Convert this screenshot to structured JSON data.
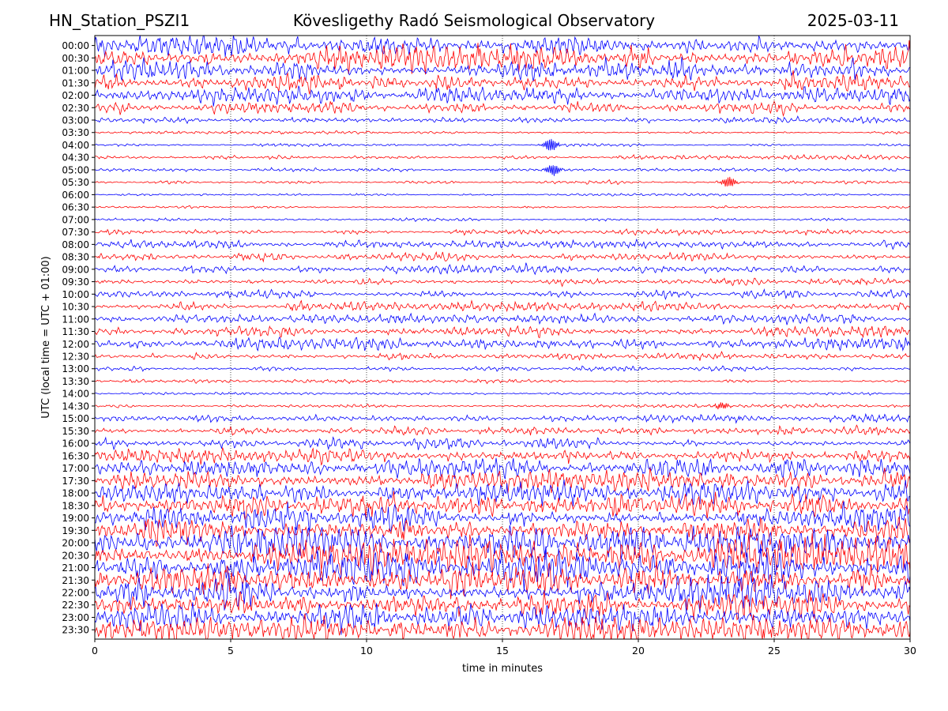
{
  "header": {
    "station": "HN_Station_PSZI1",
    "observatory": "Kövesligethy Radó Seismological Observatory",
    "date": "2025-03-11"
  },
  "chart_data": {
    "type": "line",
    "xlabel": "time in minutes",
    "ylabel": "UTC (local time = UTC + 01:00)",
    "xlim": [
      0,
      30
    ],
    "xticks": [
      0,
      5,
      10,
      15,
      20,
      25,
      30
    ],
    "vertical_gridlines": [
      5,
      10,
      15,
      20,
      25
    ],
    "row_labels": [
      "00:00",
      "00:30",
      "01:00",
      "01:30",
      "02:00",
      "02:30",
      "03:00",
      "03:30",
      "04:00",
      "04:30",
      "05:00",
      "05:30",
      "06:00",
      "06:30",
      "07:00",
      "07:30",
      "08:00",
      "08:30",
      "09:00",
      "09:30",
      "10:00",
      "10:30",
      "11:00",
      "11:30",
      "12:00",
      "12:30",
      "13:00",
      "13:30",
      "14:00",
      "14:30",
      "15:00",
      "15:30",
      "16:00",
      "16:30",
      "17:00",
      "17:30",
      "18:00",
      "18:30",
      "19:00",
      "19:30",
      "20:00",
      "20:30",
      "21:00",
      "21:30",
      "22:00",
      "22:30",
      "23:00",
      "23:30"
    ],
    "trace_colors": [
      "#0000ff",
      "#ff0000"
    ],
    "relative_amplitude": [
      0.9,
      1.0,
      0.8,
      0.7,
      0.6,
      0.5,
      0.25,
      0.12,
      0.12,
      0.18,
      0.12,
      0.15,
      0.1,
      0.1,
      0.12,
      0.2,
      0.3,
      0.38,
      0.35,
      0.3,
      0.32,
      0.38,
      0.35,
      0.45,
      0.5,
      0.3,
      0.2,
      0.15,
      0.1,
      0.15,
      0.3,
      0.35,
      0.45,
      0.6,
      0.75,
      0.85,
      0.9,
      1.0,
      1.0,
      1.1,
      1.3,
      1.4,
      1.4,
      1.3,
      1.2,
      1.1,
      1.0,
      1.0
    ],
    "events": [
      {
        "row": "04:00",
        "minute": 16.8
      },
      {
        "row": "05:00",
        "minute": 16.9
      },
      {
        "row": "05:30",
        "minute": 23.3
      },
      {
        "row": "14:30",
        "minute": 23.0
      }
    ]
  }
}
